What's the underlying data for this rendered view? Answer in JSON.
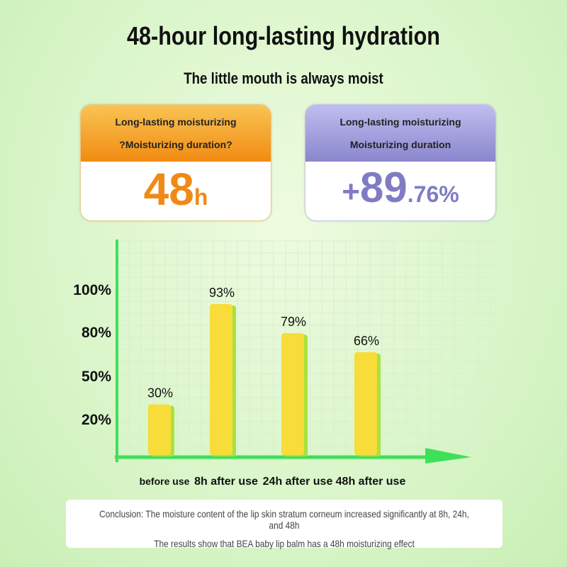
{
  "header": {
    "title": "48-hour long-lasting hydration",
    "subtitle": "The little mouth is always moist"
  },
  "cards": [
    {
      "line1": "Long-lasting moisturizing",
      "line2": "?Moisturizing duration?",
      "value": "48",
      "unit": "h",
      "color": "#f08a16"
    },
    {
      "line1": "Long-lasting moisturizing",
      "line2": "Moisturizing duration",
      "prefix": "+",
      "value": "89",
      "unit": ".76%",
      "color": "#7f7cc4"
    }
  ],
  "chart_data": {
    "type": "bar",
    "categories": [
      "before use",
      "8h after use",
      "24h after use",
      "48h after use"
    ],
    "values": [
      30,
      93,
      79,
      66
    ],
    "data_labels": [
      "30%",
      "93%",
      "79%",
      "66%"
    ],
    "y_ticks": [
      20,
      50,
      80,
      100
    ],
    "y_tick_labels": [
      "20%",
      "50%",
      "80%",
      "100%"
    ],
    "grid": true,
    "bar_color": "#f7dc3a",
    "axis_color": "#3ee05a"
  },
  "conclusion": {
    "line1": "Conclusion: The moisture content of the lip skin stratum corneum increased significantly at 8h, 24h, and 48h",
    "line2": "The results show that BEA baby lip balm has a 48h moisturizing effect"
  }
}
